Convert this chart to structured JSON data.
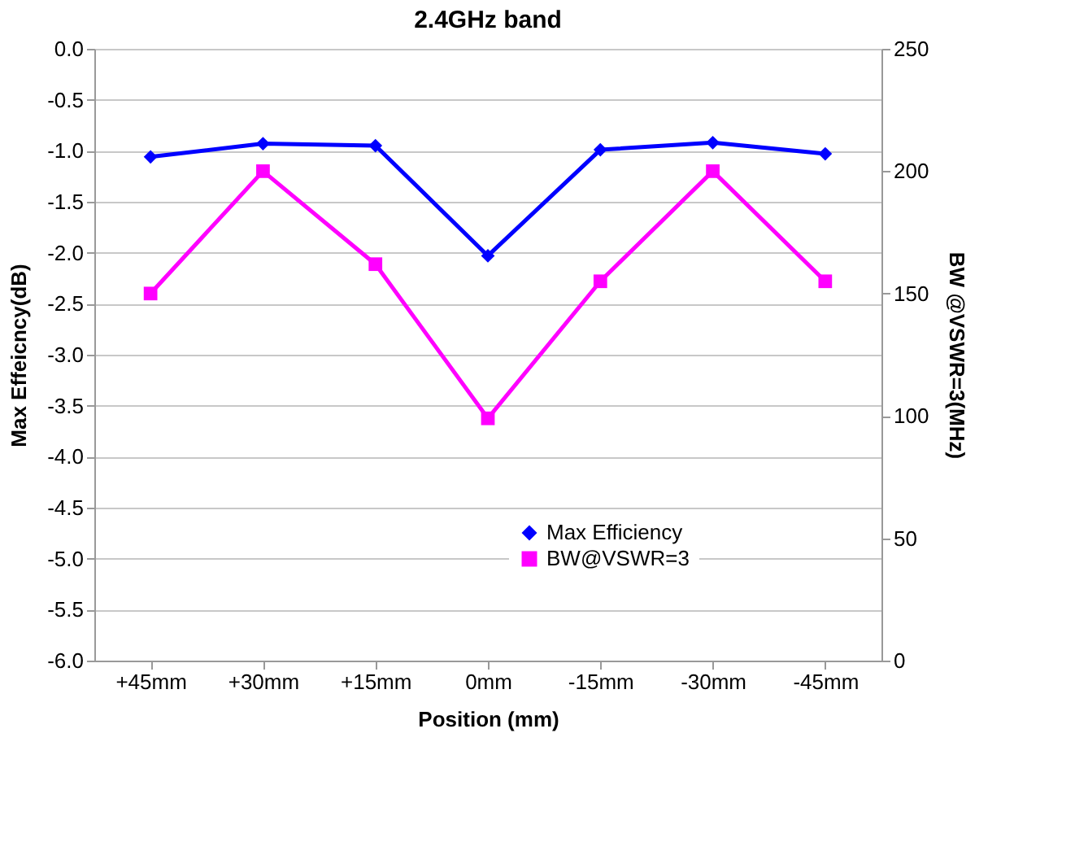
{
  "chart_data": {
    "type": "line",
    "title": "2.4GHz band",
    "xlabel": "Position (mm)",
    "ylabel": "Max Effeicncy(dB)",
    "y2label": "BW @VSWR=3(MHz)",
    "categories": [
      "+45mm",
      "+30mm",
      "+15mm",
      "0mm",
      "-15mm",
      "-30mm",
      "-45mm"
    ],
    "series": [
      {
        "name": "Max Efficiency",
        "color": "#0000ff",
        "marker": "diamond",
        "values": [
          -1.06,
          -0.93,
          -0.95,
          -2.03,
          -0.99,
          -0.92,
          -1.03
        ]
      },
      {
        "name": "BW@VSWR=3",
        "color": "#ff00ff",
        "marker": "square",
        "axis": "y2",
        "values": [
          150,
          200,
          162,
          99,
          155,
          200,
          155
        ]
      }
    ],
    "ylim": [
      -6.0,
      0.0
    ],
    "yticks": [
      {
        "value": -6.0,
        "label": "-6.0"
      },
      {
        "value": -5.5,
        "label": "-5.5"
      },
      {
        "value": -5.0,
        "label": "-5.0"
      },
      {
        "value": -4.5,
        "label": "-4.5"
      },
      {
        "value": -4.0,
        "label": "-4.0"
      },
      {
        "value": -3.5,
        "label": "-3.5"
      },
      {
        "value": -3.0,
        "label": "-3.0"
      },
      {
        "value": -2.5,
        "label": "-2.5"
      },
      {
        "value": -2.0,
        "label": "-2.0"
      },
      {
        "value": -1.5,
        "label": "-1.5"
      },
      {
        "value": -1.0,
        "label": "-1.0"
      },
      {
        "value": -0.5,
        "label": "-0.5"
      },
      {
        "value": 0.0,
        "label": "0.0"
      }
    ],
    "y2lim": [
      0,
      250
    ],
    "y2ticks": [
      0,
      50,
      100,
      150,
      200,
      250
    ],
    "grid": "y",
    "legend": "bottom",
    "line_style": "solid"
  }
}
